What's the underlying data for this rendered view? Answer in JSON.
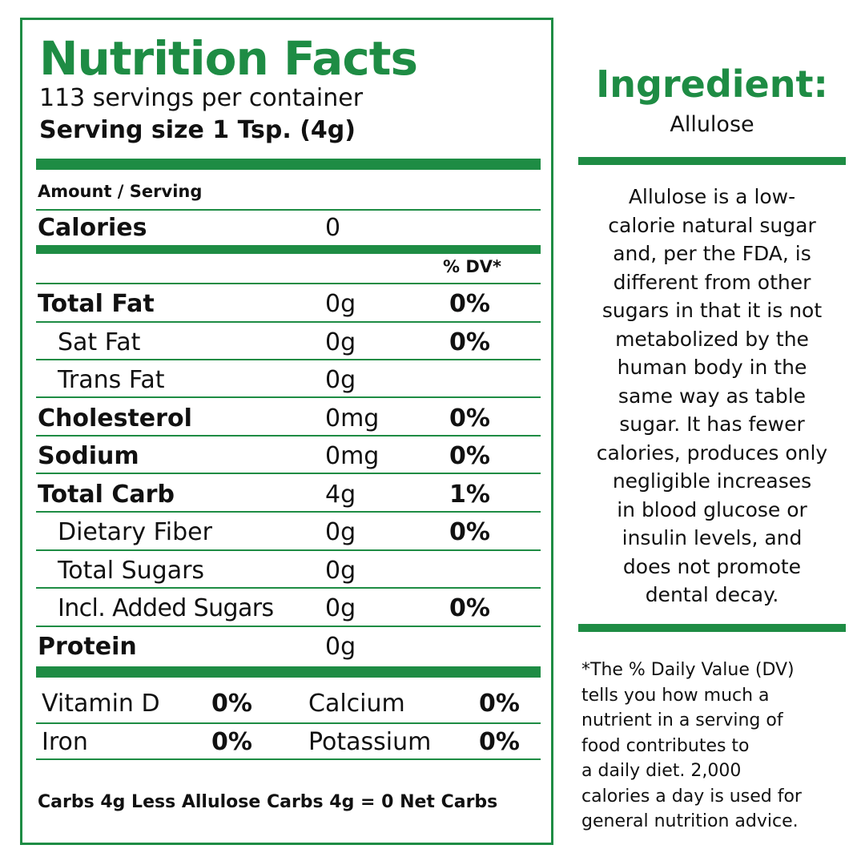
{
  "label": {
    "title": "Nutrition Facts",
    "servings_per_container": "113 servings per container",
    "serving_size": "Serving size 1 Tsp. (4g)",
    "amount_per_serving": "Amount / Serving",
    "calories_label": "Calories",
    "calories_value": "0",
    "dv_header": "% DV*",
    "nutrients": [
      {
        "name": "Total Fat",
        "amount": "0g",
        "dv": "0%"
      },
      {
        "name": "Sat Fat",
        "amount": "0g",
        "dv": "0%"
      },
      {
        "name": "Trans Fat",
        "amount": "0g",
        "dv": ""
      },
      {
        "name": "Cholesterol",
        "amount": "0mg",
        "dv": "0%"
      },
      {
        "name": "Sodium",
        "amount": "0mg",
        "dv": "0%"
      },
      {
        "name": "Total Carb",
        "amount": "4g",
        "dv": "1%"
      },
      {
        "name": "Dietary Fiber",
        "amount": "0g",
        "dv": "0%"
      },
      {
        "name": "Total Sugars",
        "amount": "0g",
        "dv": ""
      },
      {
        "name": "Incl. Added Sugars",
        "amount": "0g",
        "dv": "0%"
      },
      {
        "name": "Protein",
        "amount": "0g",
        "dv": ""
      }
    ],
    "vitamins": [
      {
        "name": "Vitamin D",
        "dv": "0%"
      },
      {
        "name": "Calcium",
        "dv": "0%"
      },
      {
        "name": "Iron",
        "dv": "0%"
      },
      {
        "name": "Potassium",
        "dv": "0%"
      }
    ],
    "net_carbs": "Carbs 4g Less Allulose Carbs 4g = 0 Net Carbs"
  },
  "ingredient": {
    "title": "Ingredient:",
    "name": "Allulose",
    "description_lines": [
      "Allulose is a low-",
      "calorie natural sugar",
      "and, per the FDA, is",
      "different from other",
      "sugars in that it is not",
      "metabolized by the",
      "human body in the",
      "same way as table",
      "sugar. It has fewer",
      "calories, produces only",
      "negligible increases",
      "in blood glucose or",
      "insulin levels, and",
      "does not promote",
      "dental decay."
    ],
    "footnote_lines": [
      "*The % Daily Value (DV)",
      "tells you how much a",
      "nutrient in a serving of",
      "food contributes to",
      "a daily diet. 2,000",
      "calories a day is used for",
      "general nutrition advice."
    ]
  },
  "colors": {
    "accent": "#1e8c44",
    "text": "#111111",
    "background": "#ffffff"
  }
}
